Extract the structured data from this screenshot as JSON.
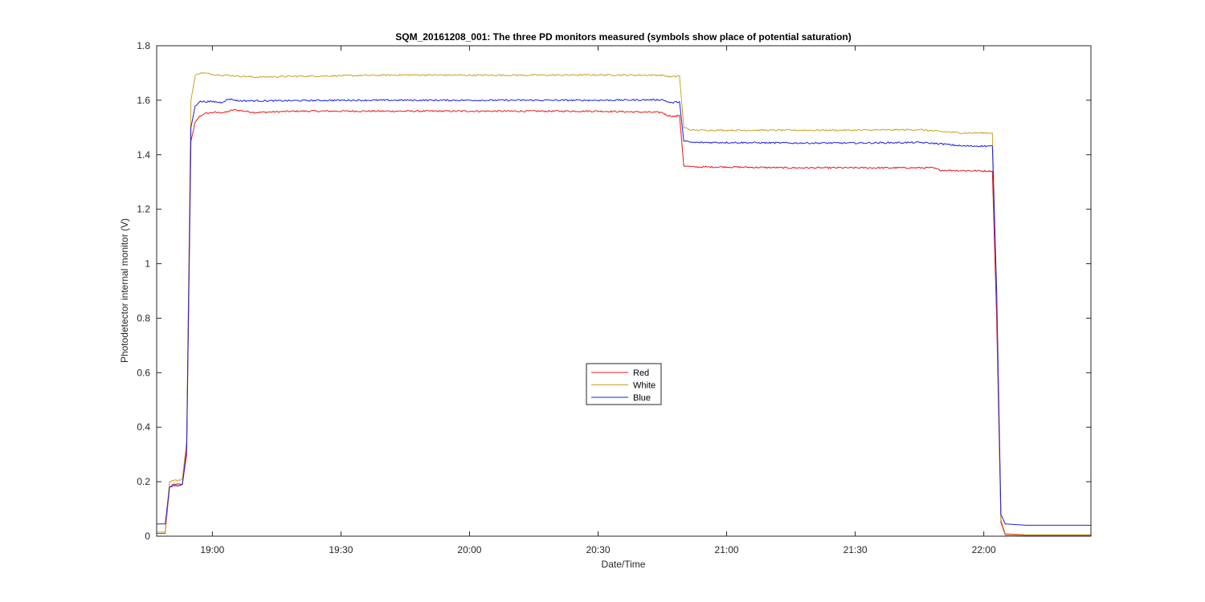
{
  "chart_data": {
    "type": "line",
    "title": "SQM_20161208_001: The three PD monitors measured (symbols show place of potential saturation)",
    "xlabel": "Date/Time",
    "ylabel": "Photodetector internal monitor (V)",
    "xlim": [
      "18:47",
      "22:25"
    ],
    "ylim": [
      0,
      1.8
    ],
    "x_ticks": [
      "19:00",
      "19:30",
      "20:00",
      "20:30",
      "21:00",
      "21:30",
      "22:00"
    ],
    "y_ticks": [
      0,
      0.2,
      0.4,
      0.6,
      0.8,
      1,
      1.2,
      1.4,
      1.6,
      1.8
    ],
    "y_tick_labels": [
      "0",
      "0.2",
      "0.4",
      "0.6",
      "0.8",
      "1",
      "1.2",
      "1.4",
      "1.6",
      "1.8"
    ],
    "grid": false,
    "legend_position": "center",
    "series": [
      {
        "name": "Red",
        "color": "#e41a1c",
        "points": [
          [
            "18:47",
            0.01
          ],
          [
            "18:48",
            0.01
          ],
          [
            "18:49",
            0.01
          ],
          [
            "18:50",
            0.18
          ],
          [
            "18:51",
            0.19
          ],
          [
            "18:52",
            0.19
          ],
          [
            "18:53",
            0.19
          ],
          [
            "18:54",
            0.3
          ],
          [
            "18:55",
            1.45
          ],
          [
            "18:56",
            1.52
          ],
          [
            "18:57",
            1.54
          ],
          [
            "18:58",
            1.55
          ],
          [
            "19:00",
            1.555
          ],
          [
            "19:03",
            1.555
          ],
          [
            "19:05",
            1.565
          ],
          [
            "19:10",
            1.555
          ],
          [
            "19:20",
            1.56
          ],
          [
            "19:30",
            1.56
          ],
          [
            "19:45",
            1.56
          ],
          [
            "20:00",
            1.56
          ],
          [
            "20:15",
            1.56
          ],
          [
            "20:30",
            1.56
          ],
          [
            "20:45",
            1.555
          ],
          [
            "20:46",
            1.545
          ],
          [
            "20:48",
            1.54
          ],
          [
            "20:49",
            1.545
          ],
          [
            "20:50",
            1.36
          ],
          [
            "20:52",
            1.355
          ],
          [
            "21:00",
            1.355
          ],
          [
            "21:15",
            1.352
          ],
          [
            "21:30",
            1.352
          ],
          [
            "21:45",
            1.352
          ],
          [
            "21:48",
            1.352
          ],
          [
            "21:50",
            1.343
          ],
          [
            "22:02",
            1.34
          ],
          [
            "22:03",
            0.8
          ],
          [
            "22:04",
            0.05
          ],
          [
            "22:05",
            0.005
          ],
          [
            "22:10",
            0.003
          ],
          [
            "22:25",
            0.003
          ]
        ]
      },
      {
        "name": "White",
        "color": "#c9a227",
        "points": [
          [
            "18:47",
            0.015
          ],
          [
            "18:48",
            0.015
          ],
          [
            "18:49",
            0.015
          ],
          [
            "18:50",
            0.2
          ],
          [
            "18:51",
            0.205
          ],
          [
            "18:52",
            0.205
          ],
          [
            "18:53",
            0.21
          ],
          [
            "18:54",
            0.35
          ],
          [
            "18:55",
            1.6
          ],
          [
            "18:56",
            1.69
          ],
          [
            "18:57",
            1.7
          ],
          [
            "18:58",
            1.7
          ],
          [
            "19:00",
            1.695
          ],
          [
            "19:05",
            1.69
          ],
          [
            "19:10",
            1.685
          ],
          [
            "19:20",
            1.688
          ],
          [
            "19:30",
            1.69
          ],
          [
            "19:45",
            1.693
          ],
          [
            "20:00",
            1.692
          ],
          [
            "20:15",
            1.692
          ],
          [
            "20:30",
            1.693
          ],
          [
            "20:45",
            1.692
          ],
          [
            "20:47",
            1.685
          ],
          [
            "20:49",
            1.69
          ],
          [
            "20:50",
            1.5
          ],
          [
            "20:52",
            1.49
          ],
          [
            "21:00",
            1.49
          ],
          [
            "21:15",
            1.49
          ],
          [
            "21:30",
            1.49
          ],
          [
            "21:45",
            1.492
          ],
          [
            "21:50",
            1.485
          ],
          [
            "21:55",
            1.48
          ],
          [
            "22:02",
            1.48
          ],
          [
            "22:03",
            0.9
          ],
          [
            "22:04",
            0.06
          ],
          [
            "22:05",
            0.01
          ],
          [
            "22:10",
            0.005
          ],
          [
            "22:25",
            0.005
          ]
        ]
      },
      {
        "name": "Blue",
        "color": "#1f1fe0",
        "points": [
          [
            "18:47",
            0.045
          ],
          [
            "18:48",
            0.045
          ],
          [
            "18:49",
            0.045
          ],
          [
            "18:50",
            0.18
          ],
          [
            "18:51",
            0.185
          ],
          [
            "18:52",
            0.185
          ],
          [
            "18:53",
            0.19
          ],
          [
            "18:54",
            0.32
          ],
          [
            "18:55",
            1.5
          ],
          [
            "18:56",
            1.58
          ],
          [
            "18:57",
            1.595
          ],
          [
            "18:58",
            1.595
          ],
          [
            "19:00",
            1.595
          ],
          [
            "19:02",
            1.592
          ],
          [
            "19:04",
            1.605
          ],
          [
            "19:06",
            1.598
          ],
          [
            "19:15",
            1.598
          ],
          [
            "19:30",
            1.6
          ],
          [
            "19:45",
            1.6
          ],
          [
            "20:00",
            1.6
          ],
          [
            "20:15",
            1.6
          ],
          [
            "20:30",
            1.6
          ],
          [
            "20:45",
            1.602
          ],
          [
            "20:47",
            1.59
          ],
          [
            "20:49",
            1.595
          ],
          [
            "20:50",
            1.45
          ],
          [
            "20:52",
            1.445
          ],
          [
            "21:00",
            1.445
          ],
          [
            "21:15",
            1.443
          ],
          [
            "21:30",
            1.443
          ],
          [
            "21:45",
            1.445
          ],
          [
            "21:50",
            1.44
          ],
          [
            "21:55",
            1.432
          ],
          [
            "22:02",
            1.432
          ],
          [
            "22:03",
            0.9
          ],
          [
            "22:04",
            0.08
          ],
          [
            "22:05",
            0.045
          ],
          [
            "22:10",
            0.04
          ],
          [
            "22:25",
            0.04
          ]
        ]
      }
    ]
  }
}
